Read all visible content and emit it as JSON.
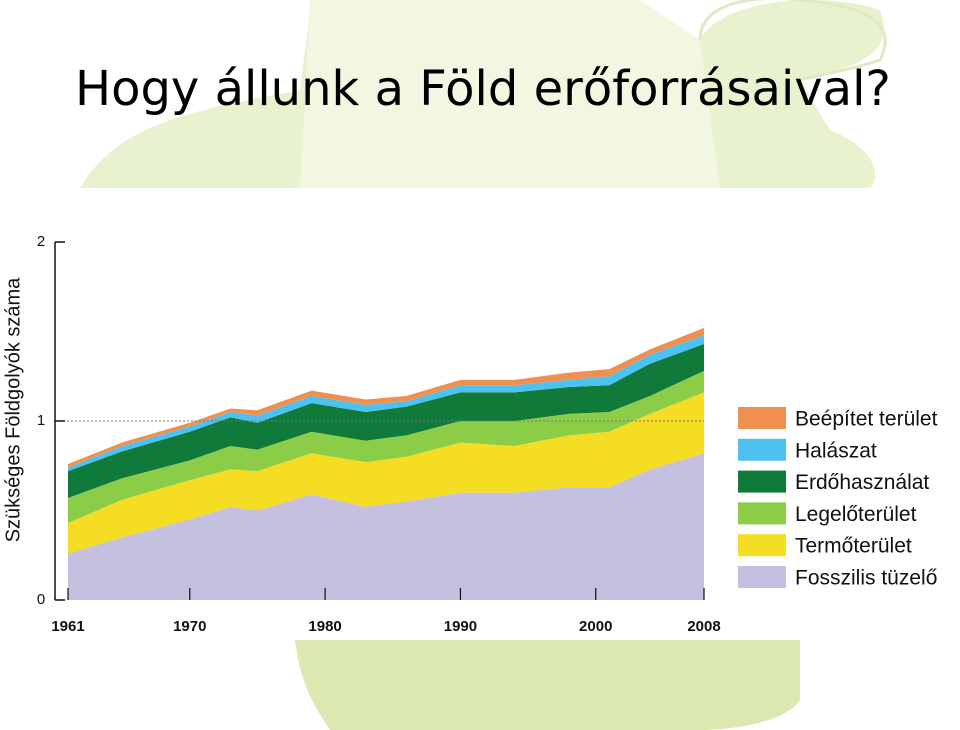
{
  "chart_data": {
    "type": "stacked_area",
    "title": "Hogy állunk a Föld erőforrásaival?",
    "y_label": "Szükséges Földgolyók száma",
    "x": [
      1961,
      1965,
      1970,
      1973,
      1975,
      1979,
      1983,
      1986,
      1990,
      1994,
      1998,
      2001,
      2004,
      2008
    ],
    "series": [
      {
        "name": "Fosszilis tüzelő",
        "color": "#c5bfe0",
        "values": [
          0.26,
          0.35,
          0.45,
          0.52,
          0.5,
          0.59,
          0.52,
          0.55,
          0.6,
          0.6,
          0.63,
          0.63,
          0.73,
          0.82
        ]
      },
      {
        "name": "Termőterület",
        "color": "#f4dd22",
        "values": [
          0.17,
          0.21,
          0.22,
          0.21,
          0.22,
          0.23,
          0.25,
          0.25,
          0.28,
          0.26,
          0.29,
          0.31,
          0.31,
          0.34
        ]
      },
      {
        "name": "Legelőterület",
        "color": "#8ccd48",
        "values": [
          0.14,
          0.12,
          0.11,
          0.13,
          0.12,
          0.12,
          0.12,
          0.12,
          0.12,
          0.14,
          0.12,
          0.11,
          0.1,
          0.12
        ]
      },
      {
        "name": "Erdőhasználat",
        "color": "#0f7a39",
        "values": [
          0.15,
          0.15,
          0.16,
          0.16,
          0.15,
          0.16,
          0.16,
          0.16,
          0.16,
          0.16,
          0.15,
          0.15,
          0.18,
          0.15
        ]
      },
      {
        "name": "Halászat",
        "color": "#4dc2f0",
        "values": [
          0.02,
          0.03,
          0.03,
          0.03,
          0.04,
          0.04,
          0.04,
          0.03,
          0.04,
          0.04,
          0.04,
          0.05,
          0.05,
          0.05
        ]
      },
      {
        "name": "Beépítet terület",
        "color": "#f09050",
        "values": [
          0.02,
          0.02,
          0.02,
          0.02,
          0.03,
          0.03,
          0.03,
          0.03,
          0.03,
          0.03,
          0.04,
          0.04,
          0.03,
          0.04
        ]
      }
    ],
    "xlim": [
      1961,
      2008
    ],
    "xticks": [
      1961,
      1970,
      1980,
      1990,
      2000,
      2008
    ],
    "ylim": [
      0,
      2
    ],
    "yticks": [
      0,
      1,
      2
    ],
    "reference_line": 1
  }
}
